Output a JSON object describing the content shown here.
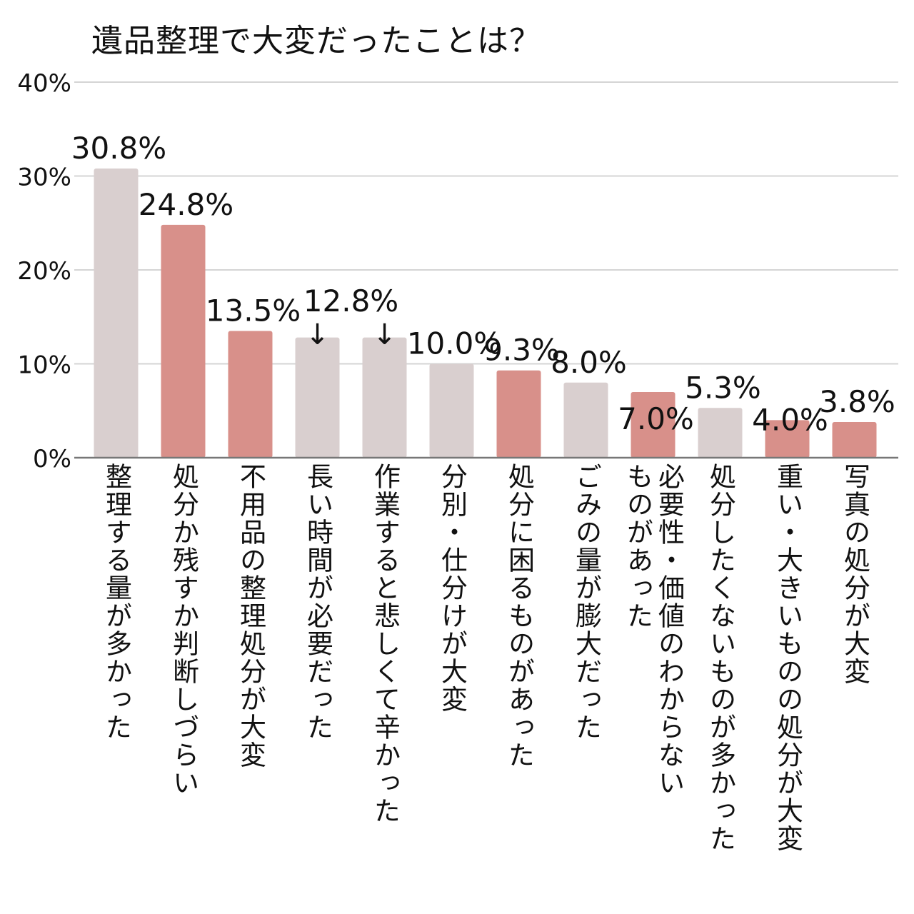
{
  "chart_data": {
    "type": "bar",
    "title": "遺品整理で大変だったことは？",
    "xlabel": "",
    "ylabel": "",
    "ylim": [
      0,
      40
    ],
    "yticks": [
      0,
      10,
      20,
      30,
      40
    ],
    "ytick_labels": [
      "0%",
      "10%",
      "20%",
      "30%",
      "40%"
    ],
    "grid": true,
    "categories": [
      "整理する量が多かった",
      "処分か残すか判断しづらい",
      "不用品の整理処分が大変",
      "長い時間が必要だった",
      "作業すると悲しくて辛かった",
      "分別・仕分けが大変",
      "処分に困るものがあった",
      "ごみの量が膨大だった",
      "必要性・価値のわからないものがあった",
      "処分したくないものが多かった",
      "重い・大きいものの処分が大変",
      "写真の処分が大変"
    ],
    "values": [
      30.8,
      24.8,
      13.5,
      12.8,
      12.8,
      10.0,
      9.3,
      8.0,
      7.0,
      5.3,
      4.0,
      3.8
    ],
    "value_labels": [
      "30.8%",
      "24.8%",
      "13.5%",
      "12.8%",
      "",
      "10.0%",
      "9.3%",
      "8.0%",
      "7.0%",
      "5.3%",
      "4.0%",
      "3.8%"
    ],
    "bar_colors": [
      "#d9cfcf",
      "#d8908a",
      "#d8908a",
      "#d9cfcf",
      "#d9cfcf",
      "#d9cfcf",
      "#d8908a",
      "#d9cfcf",
      "#d8908a",
      "#d9cfcf",
      "#d8908a",
      "#d8908a"
    ],
    "annotation_arrows": [
      "↓",
      "↓"
    ],
    "colors": {
      "grid": "#d4d4d4",
      "axis": "#777777",
      "text": "#111111"
    }
  },
  "category_labels": [
    "整理する量が多かった",
    "処分か残すか判断しづらい",
    "不用品の整理処分が大変",
    "長い時間が必要だった",
    "作業すると悲しくて辛かった",
    "分別・仕分けが大変",
    "処分に困るものがあった",
    "ごみの量が膨大だった",
    "必要性・価値のわからない\nものがあった",
    "処分したくないものが多かった",
    "重い・大きいものの処分が大変",
    "写真の処分が大変"
  ]
}
